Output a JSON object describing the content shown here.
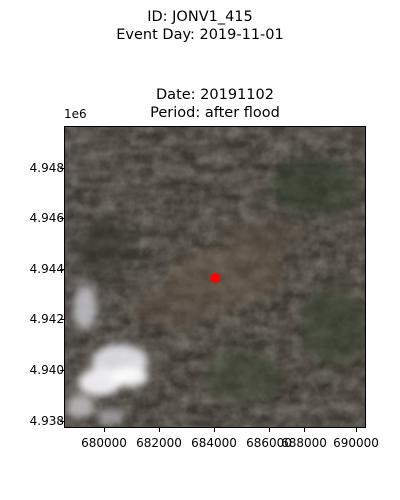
{
  "figure": {
    "suptitle_line1": "ID: JONV1_415",
    "suptitle_line2": "Event Day: 2019-11-01",
    "title_line1": "Date: 20191102",
    "title_line2": "Period: after flood",
    "offset_label": "1e6"
  },
  "axes": {
    "yticks": [
      "4.948",
      "4.946",
      "4.944",
      "4.942",
      "4.940",
      "4.938"
    ],
    "xticks": [
      "680000",
      "682000",
      "684000",
      "686000",
      "688000",
      "690000"
    ]
  },
  "image": {
    "description_colors": {
      "terrain_dark": "#3d3832",
      "terrain_brown": "#5a4f44",
      "vegetation": "#3f4a35",
      "cloud": "#e6e6ea",
      "marker": "#ff0000"
    }
  }
}
